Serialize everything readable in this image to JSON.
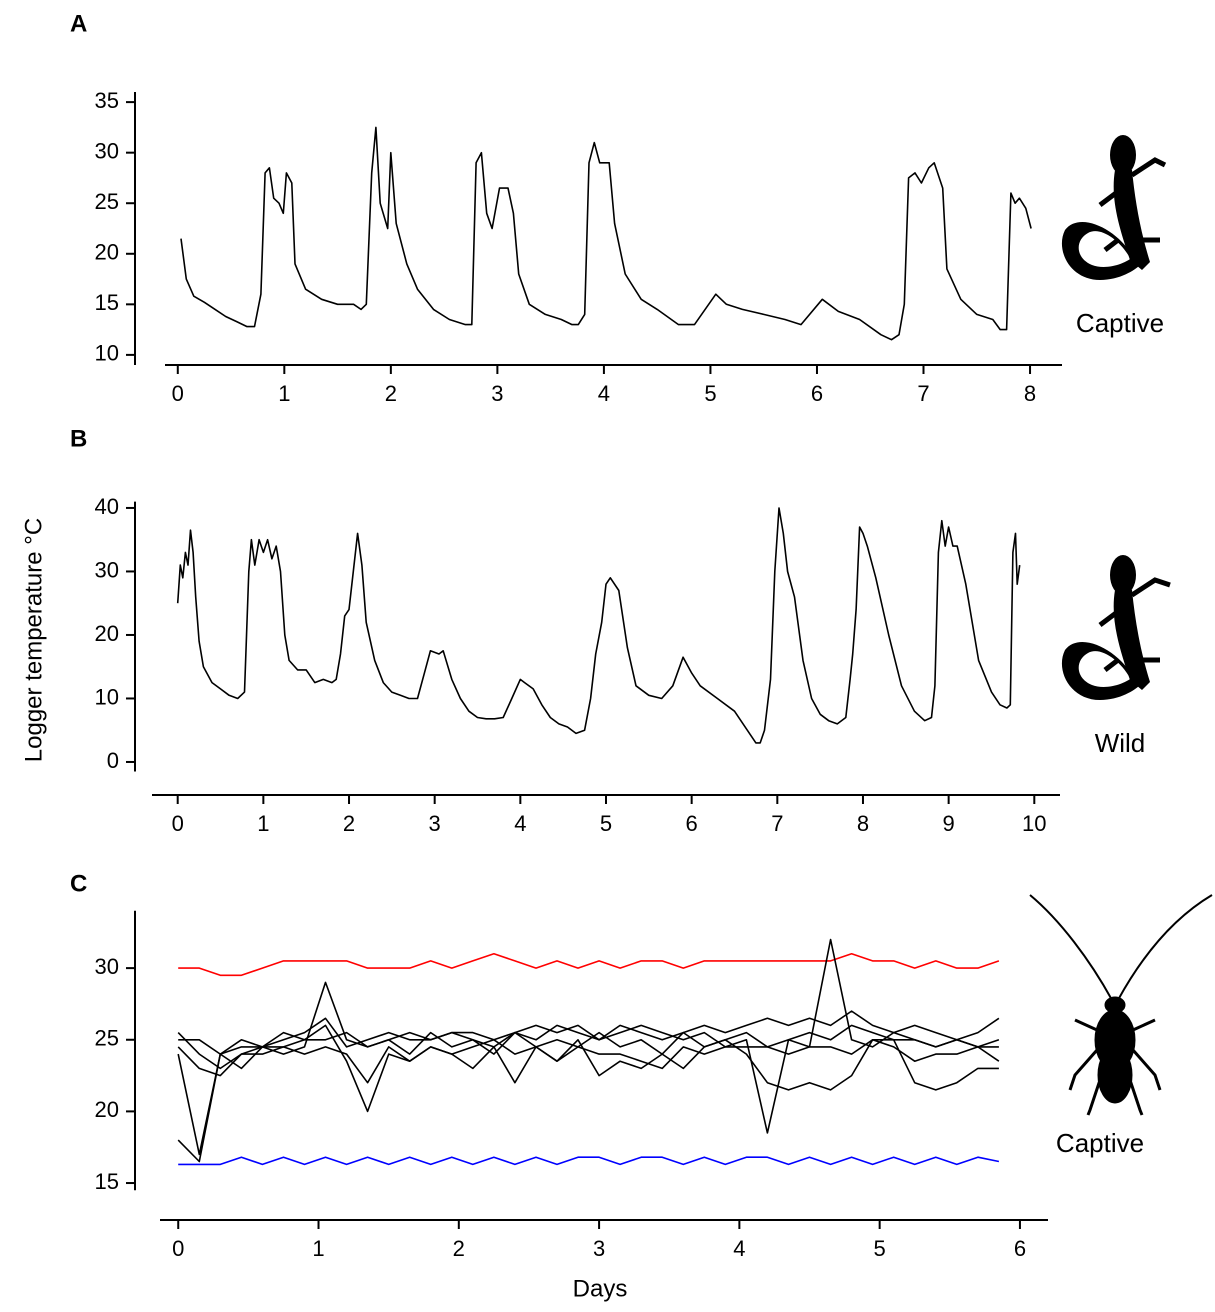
{
  "ylabel": "Logger temperature °C",
  "xlabel": "Days",
  "chart_data": [
    {
      "type": "line",
      "panel": "A",
      "annotation": "Captive",
      "xlim": [
        -0.12,
        8.3
      ],
      "xticks": [
        0,
        1,
        2,
        3,
        4,
        5,
        6,
        7,
        8
      ],
      "ylim": [
        9,
        36
      ],
      "yticks": [
        10,
        15,
        20,
        25,
        30,
        35
      ],
      "x": [
        0.03,
        0.08,
        0.15,
        0.25,
        0.35,
        0.45,
        0.55,
        0.65,
        0.72,
        0.78,
        0.82,
        0.86,
        0.9,
        0.95,
        0.99,
        1.02,
        1.07,
        1.1,
        1.2,
        1.35,
        1.5,
        1.65,
        1.72,
        1.77,
        1.82,
        1.86,
        1.9,
        1.97,
        2.0,
        2.05,
        2.15,
        2.25,
        2.4,
        2.55,
        2.7,
        2.76,
        2.8,
        2.85,
        2.9,
        2.95,
        3.02,
        3.1,
        3.15,
        3.2,
        3.3,
        3.45,
        3.6,
        3.7,
        3.76,
        3.82,
        3.86,
        3.91,
        3.96,
        4.05,
        4.1,
        4.2,
        4.35,
        4.5,
        4.7,
        4.85,
        5.05,
        5.15,
        5.3,
        5.5,
        5.7,
        5.85,
        6.05,
        6.2,
        6.4,
        6.6,
        6.7,
        6.77,
        6.82,
        6.86,
        6.92,
        6.98,
        7.05,
        7.1,
        7.18,
        7.22,
        7.35,
        7.5,
        7.65,
        7.72,
        7.78,
        7.82,
        7.86,
        7.9,
        7.96,
        8.01
      ],
      "series": [
        {
          "color": "#000000",
          "values": [
            21.5,
            17.5,
            15.8,
            15.2,
            14.5,
            13.8,
            13.3,
            12.8,
            12.8,
            16,
            28,
            28.5,
            25.5,
            25,
            24,
            28,
            27,
            19,
            16.5,
            15.5,
            15,
            15,
            14.5,
            15,
            28,
            32.5,
            25,
            22.5,
            30,
            23,
            19,
            16.5,
            14.5,
            13.5,
            13,
            13,
            29,
            30,
            24,
            22.5,
            26.5,
            26.5,
            24,
            18,
            15,
            14,
            13.5,
            13,
            13,
            14,
            29,
            31,
            29,
            29,
            23,
            18,
            15.5,
            14.5,
            13,
            13,
            16,
            15,
            14.5,
            14,
            13.5,
            13,
            15.5,
            14.3,
            13.5,
            12,
            11.5,
            12,
            15,
            27.5,
            28,
            27,
            28.5,
            29,
            26.5,
            18.5,
            15.5,
            14,
            13.5,
            12.5,
            12.5,
            26,
            25,
            25.5,
            24.5,
            22.5
          ]
        }
      ]
    },
    {
      "type": "line",
      "panel": "B",
      "annotation": "Wild",
      "xlim": [
        -0.3,
        10.3
      ],
      "xticks": [
        0,
        1,
        2,
        3,
        4,
        5,
        6,
        7,
        8,
        9,
        10
      ],
      "ylim": [
        -1.5,
        41
      ],
      "yticks": [
        0,
        10,
        20,
        30,
        40
      ],
      "x": [
        0,
        0.03,
        0.06,
        0.09,
        0.12,
        0.15,
        0.18,
        0.21,
        0.25,
        0.3,
        0.4,
        0.5,
        0.6,
        0.7,
        0.78,
        0.83,
        0.86,
        0.9,
        0.95,
        1.0,
        1.05,
        1.1,
        1.15,
        1.2,
        1.25,
        1.3,
        1.4,
        1.5,
        1.6,
        1.7,
        1.8,
        1.85,
        1.9,
        1.95,
        2.0,
        2.05,
        2.1,
        2.15,
        2.2,
        2.3,
        2.4,
        2.5,
        2.6,
        2.7,
        2.8,
        2.88,
        2.95,
        3.05,
        3.1,
        3.2,
        3.3,
        3.4,
        3.5,
        3.6,
        3.7,
        3.8,
        3.9,
        4.0,
        4.05,
        4.15,
        4.25,
        4.35,
        4.45,
        4.55,
        4.65,
        4.75,
        4.82,
        4.88,
        4.95,
        5.0,
        5.05,
        5.15,
        5.25,
        5.35,
        5.5,
        5.65,
        5.78,
        5.9,
        6.0,
        6.1,
        6.3,
        6.5,
        6.65,
        6.75,
        6.8,
        6.85,
        6.92,
        6.97,
        7.02,
        7.07,
        7.12,
        7.2,
        7.3,
        7.4,
        7.5,
        7.6,
        7.7,
        7.8,
        7.85,
        7.88,
        7.92,
        7.96,
        8.0,
        8.05,
        8.15,
        8.3,
        8.45,
        8.6,
        8.72,
        8.8,
        8.84,
        8.88,
        8.92,
        8.96,
        9.0,
        9.05,
        9.1,
        9.2,
        9.35,
        9.5,
        9.6,
        9.68,
        9.72,
        9.75,
        9.78,
        9.8,
        9.83
      ],
      "series": [
        {
          "color": "#000000",
          "values": [
            25,
            31,
            29,
            33,
            31,
            36.5,
            33,
            26,
            19,
            15,
            12.5,
            11.5,
            10.5,
            10,
            11,
            30,
            35,
            31,
            35,
            33,
            35,
            32,
            34,
            30,
            20,
            16,
            14.5,
            14.5,
            12.5,
            13,
            12.5,
            13,
            17,
            23,
            24,
            30,
            36,
            31,
            22,
            16,
            12.5,
            11,
            10.5,
            10,
            10,
            14,
            17.5,
            17,
            17.5,
            13,
            10,
            8,
            7,
            6.8,
            6.8,
            7,
            10,
            13,
            12.5,
            11.5,
            9,
            7,
            6,
            5.5,
            4.5,
            5,
            10,
            17,
            22,
            28,
            29,
            27,
            18,
            12,
            10.5,
            10,
            12,
            16.5,
            14,
            12,
            10,
            8,
            5,
            3,
            3,
            5,
            13,
            30,
            40,
            36,
            30,
            26,
            16,
            10,
            7.5,
            6.5,
            6,
            7,
            13,
            17,
            24,
            37,
            36,
            34,
            29,
            20,
            12,
            8,
            6.5,
            7,
            12,
            33,
            38,
            34,
            37,
            34,
            34,
            28,
            16,
            11,
            9,
            8.5,
            9,
            33,
            36,
            28,
            31
          ]
        }
      ]
    },
    {
      "type": "line",
      "panel": "C",
      "annotation": "Captive",
      "xlim": [
        -0.13,
        6.2
      ],
      "xticks": [
        0,
        1,
        2,
        3,
        4,
        5,
        6
      ],
      "ylim": [
        14.5,
        34
      ],
      "yticks": [
        15,
        20,
        25,
        30
      ],
      "x": [
        0,
        0.15,
        0.3,
        0.45,
        0.6,
        0.75,
        0.9,
        1.05,
        1.2,
        1.35,
        1.5,
        1.65,
        1.8,
        1.95,
        2.1,
        2.25,
        2.4,
        2.55,
        2.7,
        2.85,
        3.0,
        3.15,
        3.3,
        3.45,
        3.6,
        3.75,
        3.9,
        4.05,
        4.2,
        4.35,
        4.5,
        4.65,
        4.8,
        4.95,
        5.1,
        5.25,
        5.4,
        5.55,
        5.7,
        5.85
      ],
      "series": [
        {
          "color": "#ff0000",
          "values": [
            30,
            30,
            29.5,
            29.5,
            30,
            30.5,
            30.5,
            30.5,
            30.5,
            30,
            30,
            30,
            30.5,
            30,
            30.5,
            31,
            30.5,
            30,
            30.5,
            30,
            30.5,
            30,
            30.5,
            30.5,
            30,
            30.5,
            30.5,
            30.5,
            30.5,
            30.5,
            30.5,
            30.5,
            31,
            30.5,
            30.5,
            30,
            30.5,
            30,
            30,
            30.5
          ]
        },
        {
          "color": "#0000ff",
          "values": [
            16.3,
            16.3,
            16.3,
            16.8,
            16.3,
            16.8,
            16.3,
            16.8,
            16.3,
            16.8,
            16.3,
            16.8,
            16.3,
            16.8,
            16.3,
            16.8,
            16.3,
            16.8,
            16.3,
            16.8,
            16.8,
            16.3,
            16.8,
            16.8,
            16.3,
            16.8,
            16.3,
            16.8,
            16.8,
            16.3,
            16.8,
            16.3,
            16.8,
            16.3,
            16.8,
            16.3,
            16.8,
            16.3,
            16.8,
            16.5
          ]
        },
        {
          "color": "#000000",
          "values": [
            18,
            16.5,
            24,
            24.5,
            24.5,
            25,
            25.5,
            26.5,
            24.5,
            25,
            25.5,
            25,
            25,
            25.5,
            25,
            24.5,
            25.5,
            25,
            26,
            25.5,
            25,
            26,
            25.5,
            25,
            25.5,
            26,
            25.5,
            26,
            26.5,
            26,
            26.5,
            26,
            27,
            26,
            25.5,
            26,
            25.5,
            25,
            25.5,
            26.5
          ]
        },
        {
          "color": "#000000",
          "values": [
            24,
            17,
            24,
            23,
            24.5,
            24,
            24.5,
            29,
            25,
            24.5,
            25,
            24,
            25.5,
            24.5,
            25,
            24,
            25.5,
            24.5,
            25,
            24.5,
            25.5,
            24.5,
            25,
            24,
            25.5,
            24.5,
            25,
            25.5,
            24.5,
            25,
            24.5,
            32,
            25,
            24.5,
            25.5,
            25,
            24.5,
            25,
            24.5,
            25
          ]
        },
        {
          "color": "#000000",
          "values": [
            25.5,
            24,
            23,
            24,
            24.5,
            24.5,
            24,
            24.5,
            24,
            22,
            24.5,
            23.5,
            24.5,
            24,
            23,
            24.5,
            22,
            24.5,
            23.5,
            24.5,
            24,
            24,
            23.5,
            23,
            24.5,
            24,
            24.5,
            24.5,
            24.5,
            24,
            24.5,
            24.5,
            24,
            25,
            24.5,
            23.5,
            24,
            24,
            24.5,
            23.5
          ]
        },
        {
          "color": "#000000",
          "values": [
            25,
            25,
            24,
            25,
            24.5,
            25.5,
            25,
            26,
            23.5,
            20,
            24,
            23.5,
            24.5,
            24,
            24.5,
            25,
            24,
            24.5,
            23.5,
            25,
            22.5,
            23.5,
            23,
            24,
            23,
            24.5,
            25,
            24,
            22,
            21.5,
            22,
            21.5,
            22.5,
            25,
            25,
            22,
            21.5,
            22,
            23,
            23
          ]
        },
        {
          "color": "#000000",
          "values": [
            24.5,
            23,
            22.5,
            24,
            24,
            24.5,
            25,
            25,
            25.5,
            24.5,
            25,
            25.5,
            25,
            25.5,
            25.5,
            25,
            25.5,
            26,
            25.5,
            26,
            25,
            25.5,
            26,
            25.5,
            25,
            25.5,
            24.5,
            25,
            18.5,
            25,
            25.5,
            25,
            26,
            25.5,
            25,
            25,
            24.5,
            25,
            24.5,
            24.5
          ]
        }
      ]
    }
  ]
}
